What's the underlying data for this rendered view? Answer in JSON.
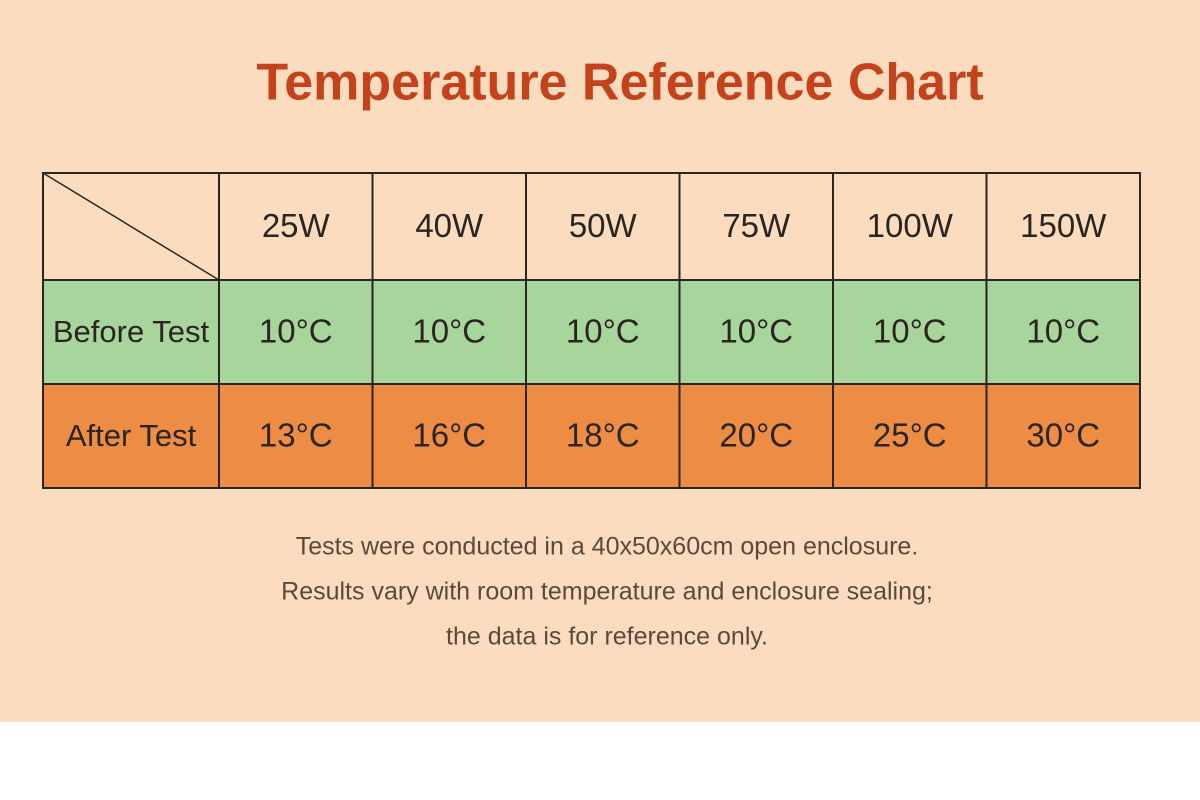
{
  "header": {
    "title": "Temperature Reference Chart"
  },
  "table": {
    "columns": [
      "25W",
      "40W",
      "50W",
      "75W",
      "100W",
      "150W"
    ],
    "rows": [
      {
        "label": "Before Test",
        "cells": [
          "10°C",
          "10°C",
          "10°C",
          "10°C",
          "10°C",
          "10°C"
        ]
      },
      {
        "label": "After Test",
        "cells": [
          "13°C",
          "16°C",
          "18°C",
          "20°C",
          "25°C",
          "30°C"
        ]
      }
    ]
  },
  "notes": [
    "Tests were conducted in a 40x50x60cm open enclosure.",
    "Results vary with room temperature and enclosure sealing;",
    "the data is for reference only."
  ]
}
